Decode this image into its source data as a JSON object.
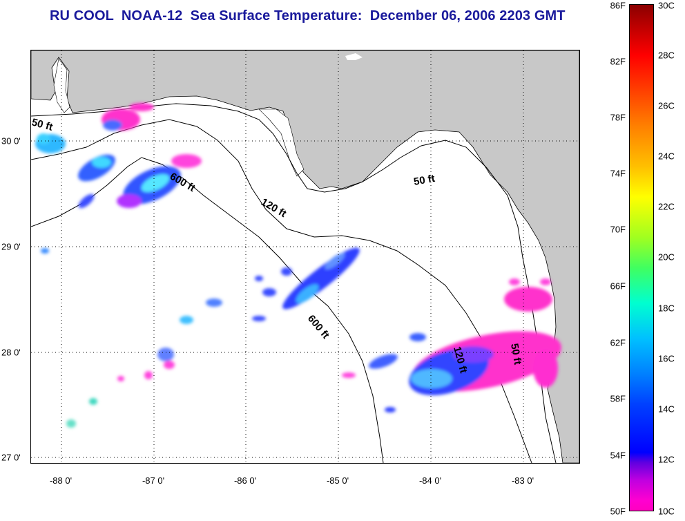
{
  "title": "RU COOL  NOAA-12  Sea Surface Temperature:  December 06, 2006 2203 GMT",
  "map": {
    "longitude_labels": [
      "-88 0'",
      "-87 0'",
      "-86 0'",
      "-85 0'",
      "-84 0'",
      "-83 0'"
    ],
    "latitude_labels": [
      "30 0'",
      "29 0'",
      "28 0'",
      "27 0'"
    ],
    "depth_contour_labels": [
      "50 ft",
      "600 ft",
      "120 ft",
      "50 ft",
      "600 ft",
      "120 ft",
      "50 ft"
    ],
    "colors": {
      "land": "#c8c8c8",
      "water": "#ffffff",
      "grid": "#000000",
      "title": "#1a1a9c"
    }
  },
  "colorbar": {
    "fahrenheit_labels": [
      "86F",
      "82F",
      "78F",
      "74F",
      "70F",
      "66F",
      "62F",
      "58F",
      "54F",
      "50F"
    ],
    "celsius_labels": [
      "30C",
      "28C",
      "26C",
      "24C",
      "22C",
      "20C",
      "18C",
      "16C",
      "14C",
      "12C",
      "10C"
    ]
  }
}
